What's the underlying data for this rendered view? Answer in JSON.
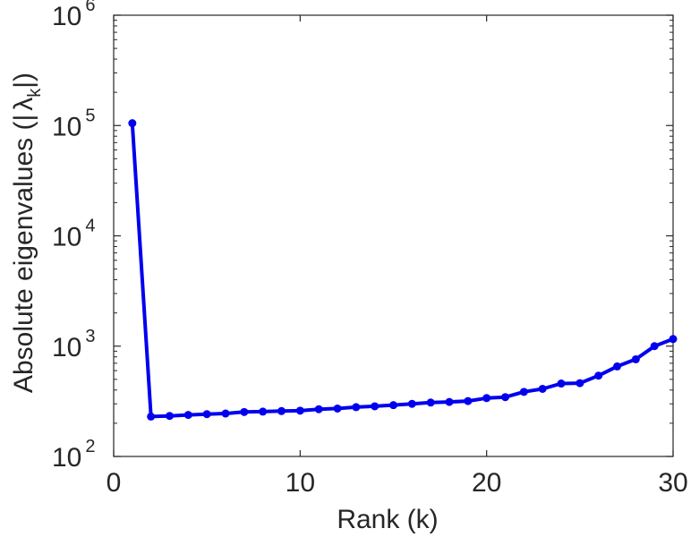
{
  "chart_data": {
    "type": "line",
    "xlabel": "Rank (k)",
    "ylabel": "Absolute eigenvalues (|",
    "ylabel_symbol": "λ",
    "ylabel_subscript": "k",
    "ylabel_close": "|)",
    "xlim": [
      0,
      30
    ],
    "ylim": [
      100,
      1000000
    ],
    "yscale": "log",
    "grid": false,
    "x_ticks": [
      {
        "value": 0,
        "label": "0"
      },
      {
        "value": 10,
        "label": "10"
      },
      {
        "value": 20,
        "label": "20"
      },
      {
        "value": 30,
        "label": "30"
      }
    ],
    "y_ticks": [
      {
        "value": 100,
        "base": "10",
        "exp": "2"
      },
      {
        "value": 1000,
        "base": "10",
        "exp": "3"
      },
      {
        "value": 10000,
        "base": "10",
        "exp": "4"
      },
      {
        "value": 100000,
        "base": "10",
        "exp": "5"
      },
      {
        "value": 1000000,
        "base": "10",
        "exp": "6"
      }
    ],
    "color": "#0000ee",
    "series": [
      {
        "x": [
          1,
          2,
          3,
          4,
          5,
          6,
          7,
          8,
          9,
          10,
          11,
          12,
          13,
          14,
          15,
          16,
          17,
          18,
          19,
          20,
          21,
          22,
          23,
          24,
          25,
          26,
          27,
          28,
          29,
          30
        ],
        "y": [
          105000,
          230,
          233,
          238,
          242,
          245,
          253,
          255,
          258,
          260,
          268,
          272,
          280,
          285,
          292,
          300,
          308,
          312,
          318,
          338,
          345,
          385,
          410,
          458,
          462,
          540,
          655,
          760,
          1000,
          1160
        ]
      }
    ]
  }
}
